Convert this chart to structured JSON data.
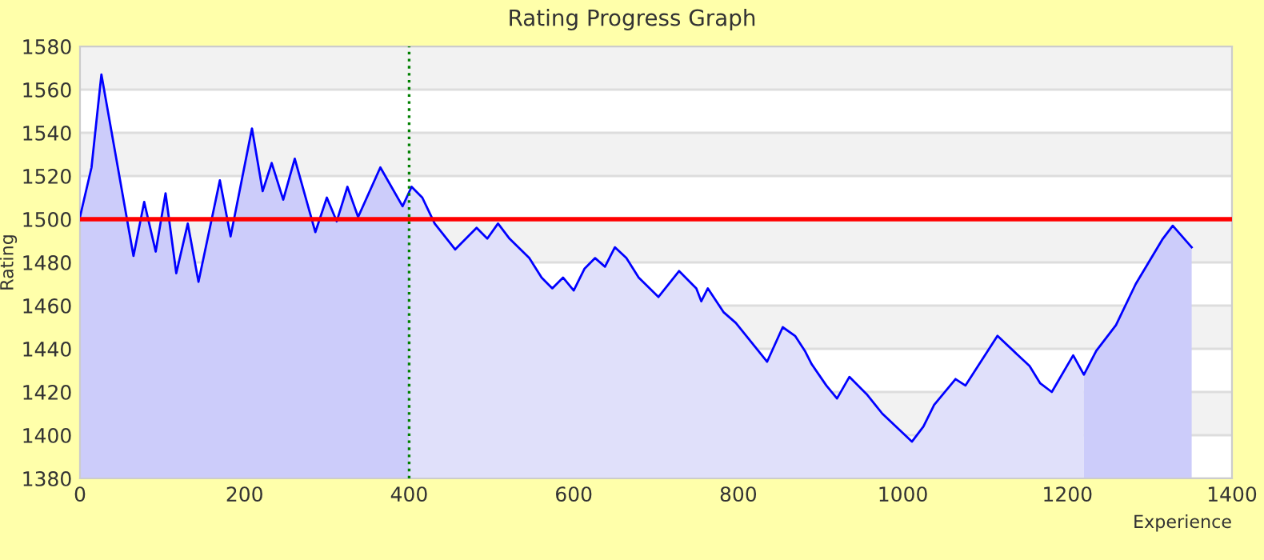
{
  "chart_data": {
    "type": "line",
    "title": "Rating Progress Graph",
    "xlabel": "Experience",
    "ylabel": "Rating",
    "xlim": [
      0,
      1400
    ],
    "xticks": [
      0,
      200,
      400,
      600,
      800,
      1000,
      1200,
      1400
    ],
    "ylim": [
      1380,
      1580
    ],
    "yticks": [
      1380,
      1400,
      1420,
      1440,
      1460,
      1480,
      1500,
      1520,
      1540,
      1560,
      1580
    ],
    "grid": "y",
    "marker": "none",
    "line_style": "solid",
    "ref_lines": [
      {
        "axis": "y",
        "value": 1500,
        "label": null,
        "color": "#ff0000",
        "line_style": "solid"
      },
      {
        "axis": "x",
        "value": 400,
        "label": null,
        "color": "#008000",
        "line_style": "dotted"
      }
    ],
    "series": [
      {
        "type": "area",
        "color": "#ccccfa",
        "x": [
          0,
          3,
          14,
          26,
          65,
          78,
          92,
          104,
          117,
          131,
          144,
          170,
          183,
          209,
          222,
          233,
          247,
          261,
          286,
          300,
          312,
          325,
          338,
          365,
          392,
          400
        ],
        "values": [
          1501,
          1506,
          1524,
          1567,
          1483,
          1508,
          1485,
          1512,
          1475,
          1498,
          1471,
          1518,
          1492,
          1542,
          1513,
          1526,
          1509,
          1528,
          1494,
          1510,
          1499,
          1515,
          1501,
          1524,
          1506,
          1513
        ]
      },
      {
        "type": "area",
        "color": "#e0e0fa",
        "x": [
          400,
          403,
          416,
          431,
          456,
          482,
          495,
          508,
          522,
          546,
          561,
          574,
          587,
          600,
          613,
          626,
          638,
          650,
          664,
          679,
          703,
          728,
          749,
          755,
          763,
          782,
          797,
          835,
          854,
          869,
          881,
          889,
          907,
          920,
          935,
          956,
          975,
          1011,
          1025,
          1038,
          1064,
          1076,
          1115,
          1154,
          1167,
          1181,
          1207,
          1220
        ],
        "values": [
          1513,
          1515,
          1510,
          1498,
          1486,
          1496,
          1491,
          1498,
          1491,
          1482,
          1473,
          1468,
          1473,
          1467,
          1477,
          1482,
          1478,
          1487,
          1482,
          1473,
          1464,
          1476,
          1468,
          1462,
          1468,
          1457,
          1452,
          1434,
          1450,
          1446,
          1439,
          1433,
          1423,
          1417,
          1427,
          1419,
          1410,
          1397,
          1404,
          1414,
          1426,
          1423,
          1446,
          1432,
          1424,
          1420,
          1437,
          1428
        ]
      },
      {
        "type": "area",
        "color": "#ccccfa",
        "x": [
          1220,
          1235,
          1259,
          1283,
          1316,
          1328,
          1351
        ],
        "values": [
          1428,
          1439,
          1451,
          1470,
          1491,
          1497,
          1487
        ]
      },
      {
        "color": "#0000ff",
        "x": [
          0,
          3,
          14,
          26,
          65,
          78,
          92,
          104,
          117,
          131,
          144,
          170,
          183,
          209,
          222,
          233,
          247,
          261,
          286,
          300,
          312,
          325,
          338,
          365,
          392,
          403,
          416,
          431,
          456,
          482,
          495,
          508,
          522,
          546,
          561,
          574,
          587,
          600,
          613,
          626,
          638,
          650,
          664,
          679,
          703,
          728,
          749,
          755,
          763,
          782,
          797,
          835,
          854,
          869,
          881,
          889,
          907,
          920,
          935,
          956,
          975,
          1011,
          1025,
          1038,
          1064,
          1076,
          1115,
          1154,
          1167,
          1181,
          1207,
          1220,
          1235,
          1259,
          1283,
          1316,
          1328,
          1351
        ],
        "values": [
          1501,
          1506,
          1524,
          1567,
          1483,
          1508,
          1485,
          1512,
          1475,
          1498,
          1471,
          1518,
          1492,
          1542,
          1513,
          1526,
          1509,
          1528,
          1494,
          1510,
          1499,
          1515,
          1501,
          1524,
          1506,
          1515,
          1510,
          1498,
          1486,
          1496,
          1491,
          1498,
          1491,
          1482,
          1473,
          1468,
          1473,
          1467,
          1477,
          1482,
          1478,
          1487,
          1482,
          1473,
          1464,
          1476,
          1468,
          1462,
          1468,
          1457,
          1452,
          1434,
          1450,
          1446,
          1439,
          1433,
          1423,
          1417,
          1427,
          1419,
          1410,
          1397,
          1404,
          1414,
          1426,
          1423,
          1446,
          1432,
          1424,
          1420,
          1437,
          1428,
          1439,
          1451,
          1470,
          1491,
          1497,
          1487
        ]
      }
    ]
  }
}
